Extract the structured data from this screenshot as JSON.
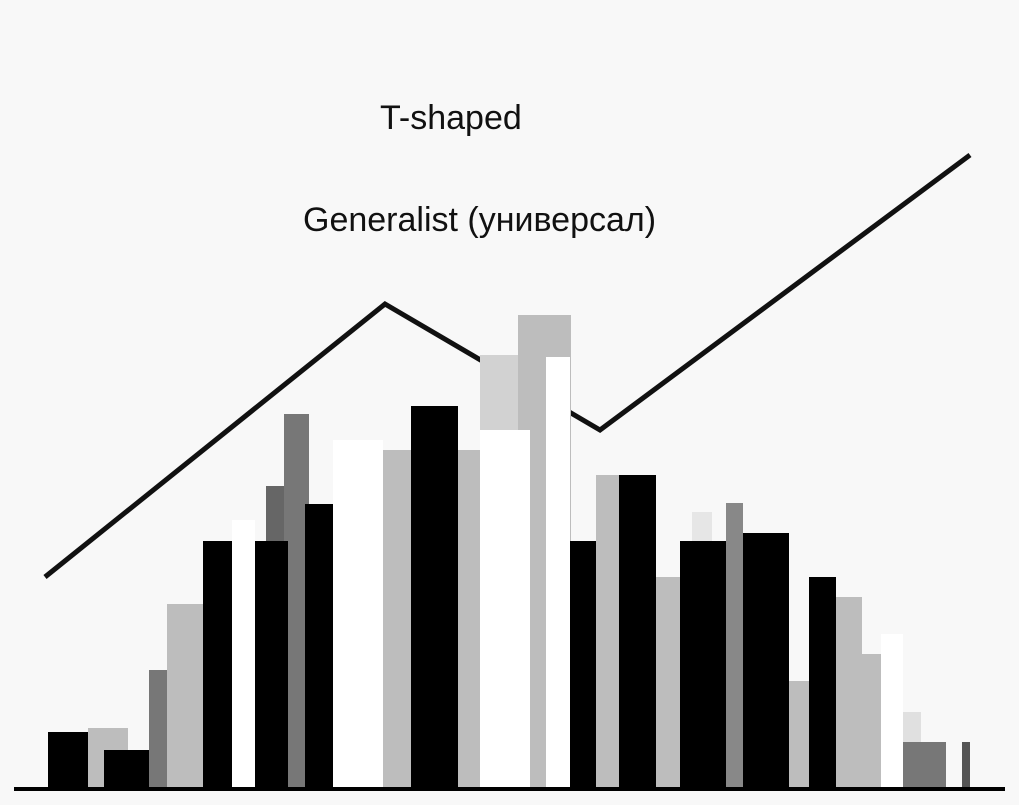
{
  "labels": {
    "top": "T-shaped",
    "bottom": "Generalist (универсал)"
  }
}
